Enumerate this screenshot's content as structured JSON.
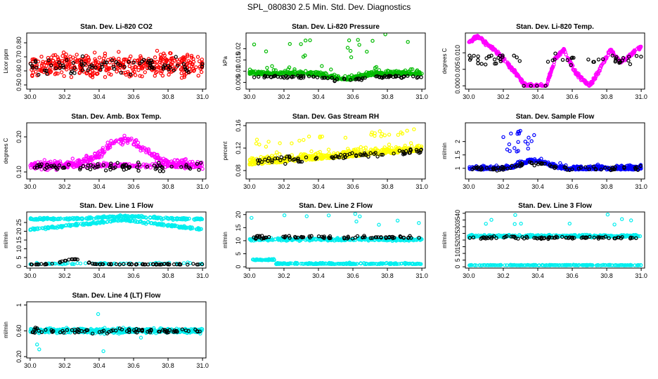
{
  "title": "SPL_080830  2.5 Min. Std. Dev. Diagnostics",
  "chart_data": [
    {
      "type": "scatter",
      "title": "Stan. Dev. Li-820 CO2",
      "ylabel": "Licor ppm",
      "xlim": [
        29.98,
        31.02
      ],
      "ylim": [
        0.47,
        0.87
      ],
      "xticks": [
        30.0,
        30.2,
        30.4,
        30.6,
        30.8,
        31.0
      ],
      "yticks": [
        0.5,
        0.6,
        0.7,
        0.8
      ],
      "series": [
        {
          "color": "#ff0000",
          "pattern": "noise",
          "base": 0.64,
          "amp": 0.07,
          "count": 420,
          "seed": 11
        },
        {
          "color": "#000000",
          "pattern": "noise",
          "base": 0.63,
          "amp": 0.05,
          "count": 80,
          "seed": 12
        }
      ]
    },
    {
      "type": "scatter",
      "title": "Stan. Dev. Li-820 Pressure",
      "ylabel": "kPa",
      "xlim": [
        29.98,
        31.02
      ],
      "ylim": [
        0.002,
        0.027
      ],
      "xticks": [
        30.0,
        30.2,
        30.4,
        30.6,
        30.8,
        31.0
      ],
      "yticks": [
        0.005,
        0.01,
        0.015,
        0.02
      ],
      "series": [
        {
          "color": "#00bb00",
          "pattern": "pressure",
          "count": 520,
          "seed": 21
        },
        {
          "color": "#000000",
          "pattern": "pressure_black",
          "count": 80,
          "seed": 22
        }
      ]
    },
    {
      "type": "scatter",
      "title": "Stan. Dev. Li-820 Temp.",
      "ylabel": "degrees C",
      "xlim": [
        29.98,
        31.02
      ],
      "ylim": [
        -0.001,
        0.016
      ],
      "xticks": [
        30.0,
        30.2,
        30.4,
        30.6,
        30.8,
        31.0
      ],
      "yticks": [
        0.0,
        0.005,
        0.01
      ],
      "series": [
        {
          "color": "#ff00ff",
          "pattern": "temp",
          "count": 520,
          "seed": 31
        },
        {
          "color": "#000000",
          "pattern": "temp_black",
          "count": 60,
          "seed": 32
        }
      ]
    },
    {
      "type": "scatter",
      "title": "Stan. Dev. Amb. Box Temp.",
      "ylabel": "degrees C",
      "xlim": [
        29.98,
        31.02
      ],
      "ylim": [
        0.08,
        0.24
      ],
      "xticks": [
        30.0,
        30.2,
        30.4,
        30.6,
        30.8,
        31.0
      ],
      "yticks": [
        0.1,
        0.2
      ],
      "series": [
        {
          "color": "#ff00ff",
          "pattern": "hump",
          "count": 520,
          "seed": 41
        },
        {
          "color": "#000000",
          "pattern": "noise",
          "base": 0.115,
          "amp": 0.008,
          "count": 80,
          "seed": 42
        }
      ]
    },
    {
      "type": "scatter",
      "title": "Stan. Dev. Gas Stream RH",
      "ylabel": "percent",
      "xlim": [
        29.98,
        31.02
      ],
      "ylim": [
        0.065,
        0.165
      ],
      "xticks": [
        30.0,
        30.2,
        30.4,
        30.6,
        30.8,
        31.0
      ],
      "yticks": [
        0.08,
        0.12,
        0.16
      ],
      "series": [
        {
          "color": "#ffff00",
          "pattern": "rh",
          "count": 520,
          "seed": 51
        },
        {
          "color": "#000000",
          "pattern": "rh_black",
          "count": 80,
          "seed": 52
        }
      ]
    },
    {
      "type": "scatter",
      "title": "Stan. Dev. Sample Flow",
      "ylabel": "ml/min",
      "xlim": [
        29.98,
        31.02
      ],
      "ylim": [
        0.6,
        2.7
      ],
      "xticks": [
        30.0,
        30.2,
        30.4,
        30.6,
        30.8,
        31.0
      ],
      "yticks": [
        1.0,
        1.5,
        2.0
      ],
      "series": [
        {
          "color": "#0000ff",
          "pattern": "flow",
          "count": 520,
          "seed": 61
        },
        {
          "color": "#000000",
          "pattern": "flow_black",
          "count": 80,
          "seed": 62
        }
      ]
    },
    {
      "type": "scatter",
      "title": "Stan. Dev. Line 1 Flow",
      "ylabel": "ml/min",
      "xlim": [
        29.98,
        31.02
      ],
      "ylim": [
        -1,
        31
      ],
      "xticks": [
        30.0,
        30.2,
        30.4,
        30.6,
        30.8,
        31.0
      ],
      "yticks": [
        0,
        5,
        10,
        15,
        20,
        25
      ],
      "series": [
        {
          "color": "#00eeee",
          "pattern": "line1",
          "count": 560,
          "seed": 71
        },
        {
          "color": "#000000",
          "pattern": "line1_black",
          "count": 80,
          "seed": 72
        }
      ]
    },
    {
      "type": "scatter",
      "title": "Stan. Dev. Line 2 Flow",
      "ylabel": "ml/min",
      "xlim": [
        29.98,
        31.02
      ],
      "ylim": [
        -0.5,
        21
      ],
      "xticks": [
        30.0,
        30.2,
        30.4,
        30.6,
        30.8,
        31.0
      ],
      "yticks": [
        0,
        5,
        10,
        15,
        20
      ],
      "series": [
        {
          "color": "#00eeee",
          "pattern": "line2",
          "count": 560,
          "seed": 81
        },
        {
          "color": "#000000",
          "pattern": "noise",
          "base": 11.3,
          "amp": 0.5,
          "count": 80,
          "seed": 82
        }
      ]
    },
    {
      "type": "scatter",
      "title": "Stan. Dev. Line 3 Flow",
      "ylabel": "ml/min",
      "xlim": [
        29.98,
        31.02
      ],
      "ylim": [
        -1,
        41
      ],
      "xticks": [
        30.0,
        30.2,
        30.4,
        30.6,
        30.8,
        31.0
      ],
      "yticks": [
        0,
        5,
        10,
        15,
        20,
        25,
        30,
        35,
        40
      ],
      "series": [
        {
          "color": "#00eeee",
          "pattern": "line3",
          "count": 560,
          "seed": 91
        },
        {
          "color": "#000000",
          "pattern": "noise",
          "base": 21.8,
          "amp": 0.8,
          "count": 80,
          "seed": 92
        }
      ]
    },
    {
      "type": "scatter",
      "title": "Stan. Dev. Line 4 (LT) Flow",
      "ylabel": "ml/min",
      "xlim": [
        29.98,
        31.02
      ],
      "ylim": [
        0.18,
        1.05
      ],
      "xticks": [
        30.0,
        30.2,
        30.4,
        30.6,
        30.8,
        31.0
      ],
      "yticks": [
        0.2,
        0.6,
        1.0
      ],
      "series": [
        {
          "color": "#00eeee",
          "pattern": "line4",
          "count": 520,
          "seed": 101
        },
        {
          "color": "#000000",
          "pattern": "noise",
          "base": 0.6,
          "amp": 0.03,
          "count": 80,
          "seed": 102
        }
      ]
    }
  ]
}
